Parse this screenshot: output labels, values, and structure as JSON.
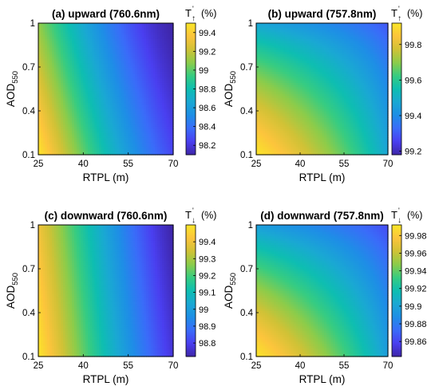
{
  "colors": {
    "colormap": [
      "#3e26a8",
      "#4a3ff0",
      "#3a6cf9",
      "#1e8ee6",
      "#1aa8d3",
      "#0ebeb1",
      "#37cc81",
      "#8ccc4a",
      "#d0c236",
      "#fcc43c",
      "#f9e628"
    ],
    "frame": "#000000"
  },
  "chart_data": [
    {
      "type": "heatmap",
      "title": "(a) upward (760.6nm)",
      "xlabel": "RTPL (m)",
      "ylabel_main": "AOD",
      "ylabel_sub": "550",
      "xticks": [
        "25",
        "40",
        "55",
        "70"
      ],
      "yticks": [
        "0.1",
        "0.4",
        "0.7",
        "1"
      ],
      "xlim": [
        25,
        70
      ],
      "ylim": [
        0.1,
        1
      ],
      "colorbar": {
        "label_main": "T",
        "label_prime": "'",
        "label_arrow": "↑",
        "label_unit": "(%)",
        "ticks": [
          "99.4",
          "99.2",
          "99",
          "98.8",
          "98.6",
          "98.4",
          "98.2"
        ],
        "tick_values": [
          99.4,
          99.2,
          99.0,
          98.8,
          98.6,
          98.4,
          98.2
        ],
        "range": [
          98.1,
          99.5
        ]
      },
      "shape": "linear",
      "field": {
        "a": 2.0,
        "b": 0.55,
        "gamma": 1.4,
        "high_corner": "bottom-left"
      }
    },
    {
      "type": "heatmap",
      "title": "(b) upward (757.8nm)",
      "xlabel": "RTPL (m)",
      "ylabel_main": "AOD",
      "ylabel_sub": "550",
      "xticks": [
        "25",
        "40",
        "55",
        "70"
      ],
      "yticks": [
        "0.1",
        "0.4",
        "0.7",
        "1"
      ],
      "xlim": [
        25,
        70
      ],
      "ylim": [
        0.1,
        1
      ],
      "colorbar": {
        "label_main": "T",
        "label_prime": "'",
        "label_arrow": "↑",
        "label_unit": "(%)",
        "ticks": [
          "99.8",
          "99.6",
          "99.4",
          "99.2"
        ],
        "tick_values": [
          99.8,
          99.6,
          99.4,
          99.2
        ],
        "range": [
          99.18,
          99.92
        ]
      },
      "shape": "product",
      "field": {
        "gamma": 0.55,
        "high_corner": "bottom-left"
      }
    },
    {
      "type": "heatmap",
      "title": "(c) downward (760.6nm)",
      "xlabel": "RTPL (m)",
      "ylabel_main": "AOD",
      "ylabel_sub": "550",
      "xticks": [
        "25",
        "40",
        "55",
        "70"
      ],
      "yticks": [
        "0.1",
        "0.4",
        "0.7",
        "1"
      ],
      "xlim": [
        25,
        70
      ],
      "ylim": [
        0.1,
        1
      ],
      "colorbar": {
        "label_main": "T",
        "label_prime": "'",
        "label_arrow": "↓",
        "label_unit": "(%)",
        "ticks": [
          "99.4",
          "99.3",
          "99.2",
          "99.1",
          "99",
          "98.9",
          "98.8"
        ],
        "tick_values": [
          99.4,
          99.3,
          99.2,
          99.1,
          99.0,
          98.9,
          98.8
        ],
        "range": [
          98.72,
          99.5
        ]
      },
      "shape": "linear",
      "field": {
        "a": 3.0,
        "b": 0.35,
        "gamma": 1.2,
        "high_corner": "bottom-left"
      }
    },
    {
      "type": "heatmap",
      "title": "(d) downward (757.8nm)",
      "xlabel": "RTPL (m)",
      "ylabel_main": "AOD",
      "ylabel_sub": "550",
      "xticks": [
        "25",
        "40",
        "55",
        "70"
      ],
      "yticks": [
        "0.1",
        "0.4",
        "0.7",
        "1"
      ],
      "xlim": [
        25,
        70
      ],
      "ylim": [
        0.1,
        1
      ],
      "colorbar": {
        "label_main": "T",
        "label_prime": "'",
        "label_arrow": "↓",
        "label_unit": "(%)",
        "ticks": [
          "99.98",
          "99.96",
          "99.94",
          "99.92",
          "99.9",
          "99.88",
          "99.86"
        ],
        "tick_values": [
          99.98,
          99.96,
          99.94,
          99.92,
          99.9,
          99.88,
          99.86
        ],
        "range": [
          99.843,
          99.992
        ]
      },
      "shape": "product",
      "field": {
        "gamma": 0.6,
        "high_corner": "bottom-left"
      }
    }
  ]
}
